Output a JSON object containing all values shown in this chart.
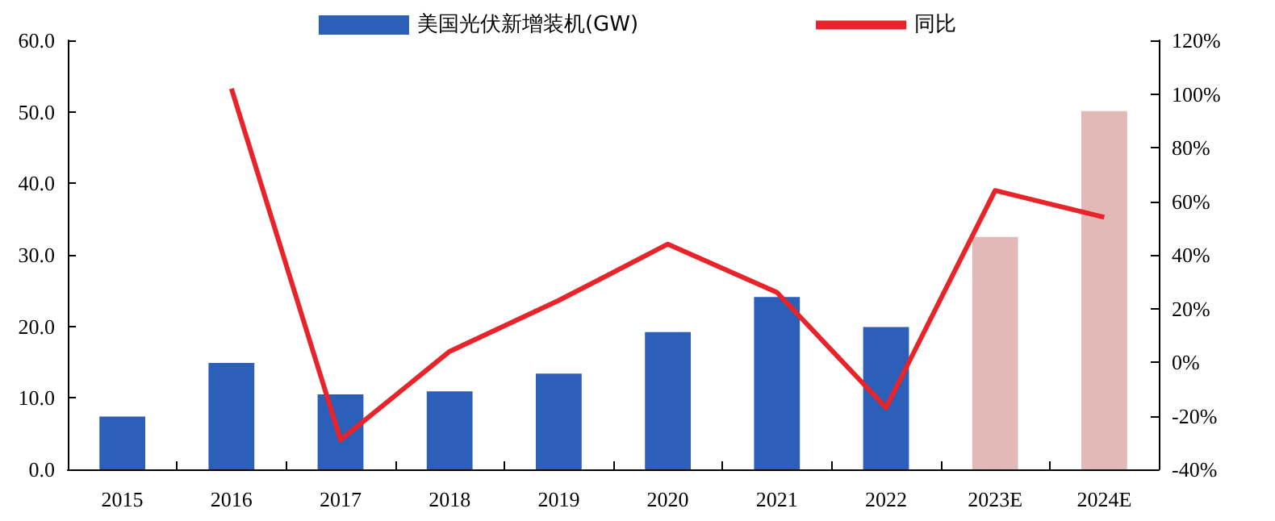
{
  "chart_data": {
    "type": "bar",
    "categories": [
      "2015",
      "2016",
      "2017",
      "2018",
      "2019",
      "2020",
      "2021",
      "2022",
      "2023E",
      "2024E"
    ],
    "series": [
      {
        "name": "美国光伏新增装机(GW)",
        "color": "#2b5fb8",
        "colors": [
          "#2b5fb8",
          "#2b5fb8",
          "#2b5fb8",
          "#2b5fb8",
          "#2b5fb8",
          "#2b5fb8",
          "#2b5fb8",
          "#2b5fb8",
          "#e2b9b7",
          "#e2b9b7"
        ],
        "values": [
          7.4,
          14.9,
          10.5,
          10.9,
          13.4,
          19.2,
          24.1,
          19.9,
          32.5,
          50.1
        ]
      },
      {
        "name": "同比",
        "type": "line",
        "axis": "y2",
        "color": "#e8242a",
        "values": [
          null,
          102,
          -29,
          4,
          23,
          44,
          26,
          -17,
          64,
          54
        ]
      }
    ],
    "ylim": [
      0,
      60
    ],
    "yticks": [
      {
        "value": 0,
        "label": "0.0"
      },
      {
        "value": 10,
        "label": "10.0"
      },
      {
        "value": 20,
        "label": "20.0"
      },
      {
        "value": 30,
        "label": "30.0"
      },
      {
        "value": 40,
        "label": "40.0"
      },
      {
        "value": 50,
        "label": "50.0"
      },
      {
        "value": 60,
        "label": "60.0"
      }
    ],
    "y2lim": [
      -40,
      120
    ],
    "y2ticks": [
      {
        "value": -40,
        "label": "-40%"
      },
      {
        "value": -20,
        "label": "-20%"
      },
      {
        "value": 0,
        "label": "0%"
      },
      {
        "value": 20,
        "label": "20%"
      },
      {
        "value": 40,
        "label": "40%"
      },
      {
        "value": 60,
        "label": "60%"
      },
      {
        "value": 80,
        "label": "80%"
      },
      {
        "value": 100,
        "label": "100%"
      },
      {
        "value": 120,
        "label": "120%"
      }
    ],
    "legend": "top",
    "grid": false,
    "marker": "none"
  }
}
